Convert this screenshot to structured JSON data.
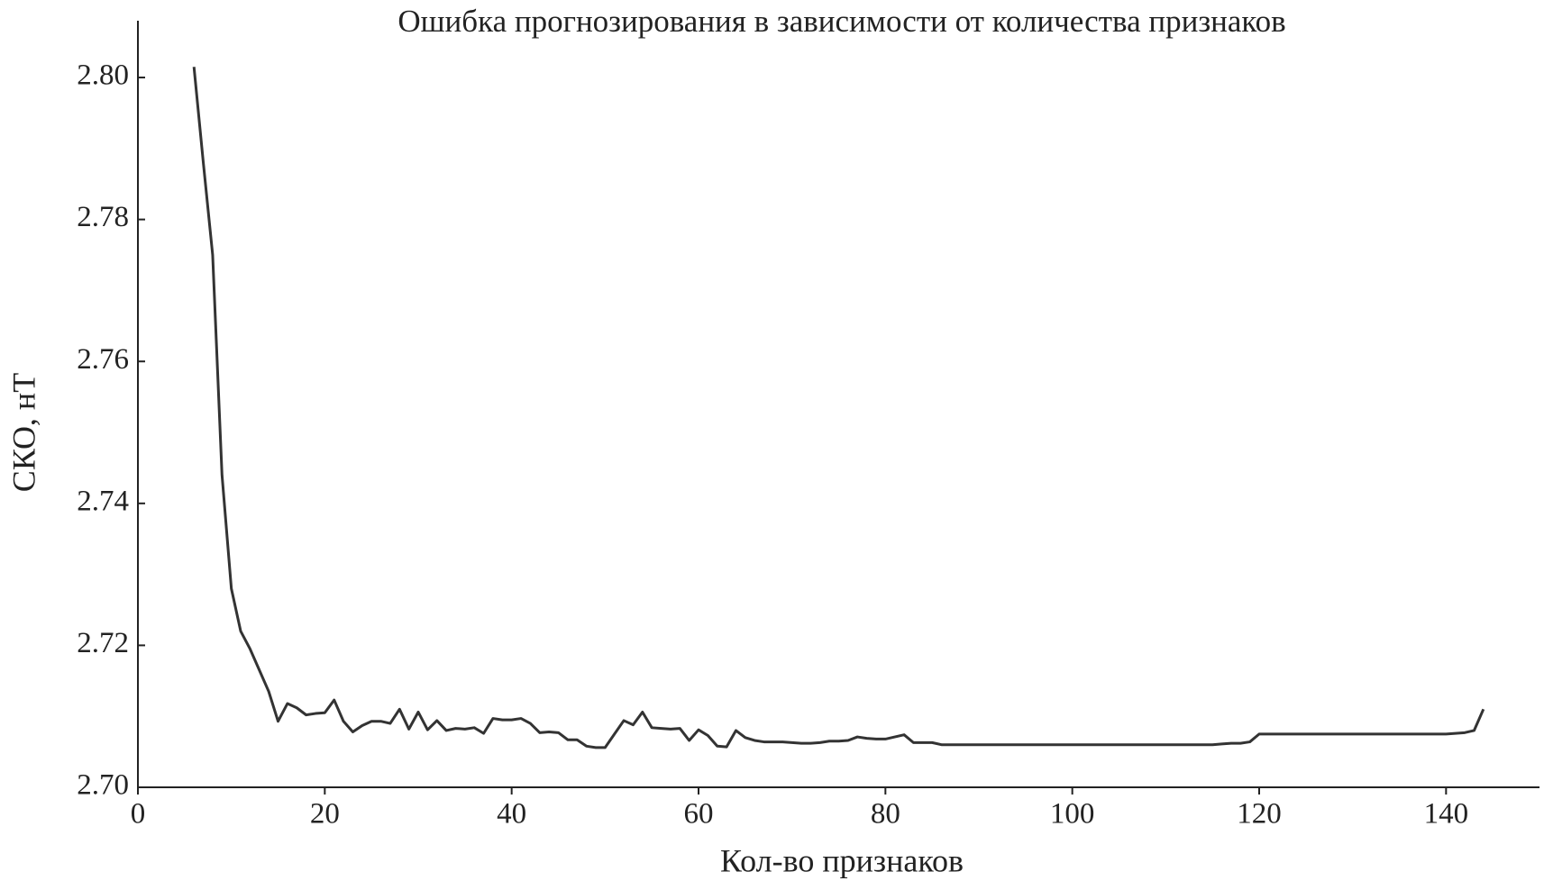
{
  "chart_data": {
    "type": "line",
    "title": "Ошибка прогнозирования в зависимости от количества признаков",
    "xlabel": "Кол-во признаков",
    "ylabel": "СКО, нТ",
    "x": [
      6,
      7,
      8,
      9,
      10,
      11,
      12,
      13,
      14,
      15,
      16,
      17,
      18,
      19,
      20,
      21,
      22,
      23,
      24,
      25,
      26,
      27,
      28,
      29,
      30,
      31,
      32,
      33,
      34,
      35,
      36,
      37,
      38,
      39,
      40,
      41,
      42,
      43,
      44,
      45,
      46,
      47,
      48,
      49,
      50,
      51,
      52,
      53,
      54,
      55,
      56,
      57,
      58,
      59,
      60,
      61,
      62,
      63,
      64,
      65,
      66,
      67,
      68,
      69,
      70,
      71,
      72,
      73,
      74,
      75,
      76,
      77,
      78,
      79,
      80,
      81,
      82,
      83,
      84,
      85,
      86,
      87,
      88,
      89,
      90,
      91,
      92,
      93,
      94,
      95,
      96,
      97,
      98,
      99,
      100,
      101,
      102,
      103,
      104,
      105,
      106,
      107,
      108,
      109,
      110,
      111,
      112,
      113,
      114,
      115,
      116,
      117,
      118,
      119,
      120,
      121,
      122,
      123,
      124,
      125,
      126,
      127,
      128,
      129,
      130,
      131,
      132,
      133,
      134,
      135,
      136,
      137,
      138,
      139,
      140,
      141,
      142,
      143,
      144
    ],
    "series": [
      {
        "name": "СКО",
        "color": "#333333",
        "values": [
          2.8015,
          2.788,
          2.775,
          2.744,
          2.728,
          2.722,
          2.7195,
          2.7165,
          2.7135,
          2.7093,
          2.7118,
          2.7112,
          2.7102,
          2.7104,
          2.7105,
          2.7123,
          2.7093,
          2.7078,
          2.7087,
          2.7093,
          2.7093,
          2.709,
          2.711,
          2.7082,
          2.7106,
          2.7081,
          2.7094,
          2.708,
          2.7083,
          2.7082,
          2.7084,
          2.7076,
          2.7097,
          2.7095,
          2.7095,
          2.7097,
          2.709,
          2.7077,
          2.7078,
          2.7077,
          2.7067,
          2.7067,
          2.7058,
          2.7056,
          2.7056,
          2.7075,
          2.7094,
          2.7088,
          2.7106,
          2.7084,
          2.7083,
          2.7082,
          2.7083,
          2.7066,
          2.7081,
          2.7073,
          2.7058,
          2.7057,
          2.708,
          2.707,
          2.7066,
          2.7064,
          2.7064,
          2.7064,
          2.7063,
          2.7062,
          2.7062,
          2.7063,
          2.7065,
          2.7065,
          2.7066,
          2.7071,
          2.7069,
          2.7068,
          2.7068,
          2.7071,
          2.7074,
          2.7063,
          2.7063,
          2.7063,
          2.706,
          2.706,
          2.706,
          2.706,
          2.706,
          2.706,
          2.706,
          2.706,
          2.706,
          2.706,
          2.706,
          2.706,
          2.706,
          2.706,
          2.706,
          2.706,
          2.706,
          2.706,
          2.706,
          2.706,
          2.706,
          2.706,
          2.706,
          2.706,
          2.706,
          2.706,
          2.706,
          2.706,
          2.706,
          2.706,
          2.7061,
          2.7062,
          2.7062,
          2.7064,
          2.7075,
          2.7075,
          2.7075,
          2.7075,
          2.7075,
          2.7075,
          2.7075,
          2.7075,
          2.7075,
          2.7075,
          2.7075,
          2.7075,
          2.7075,
          2.7075,
          2.7075,
          2.7075,
          2.7075,
          2.7075,
          2.7075,
          2.7075,
          2.7075,
          2.7076,
          2.7077,
          2.708,
          2.711
        ]
      }
    ],
    "xlim": [
      0,
      150
    ],
    "xticks": [
      0,
      20,
      40,
      60,
      80,
      100,
      120,
      140
    ],
    "ylim": [
      2.7,
      2.808
    ],
    "yticks": [
      {
        "value": 2.7,
        "label": "2.70"
      },
      {
        "value": 2.72,
        "label": "2.72"
      },
      {
        "value": 2.74,
        "label": "2.74"
      },
      {
        "value": 2.76,
        "label": "2.76"
      },
      {
        "value": 2.78,
        "label": "2.78"
      },
      {
        "value": 2.8,
        "label": "2.80"
      }
    ],
    "grid": false
  }
}
